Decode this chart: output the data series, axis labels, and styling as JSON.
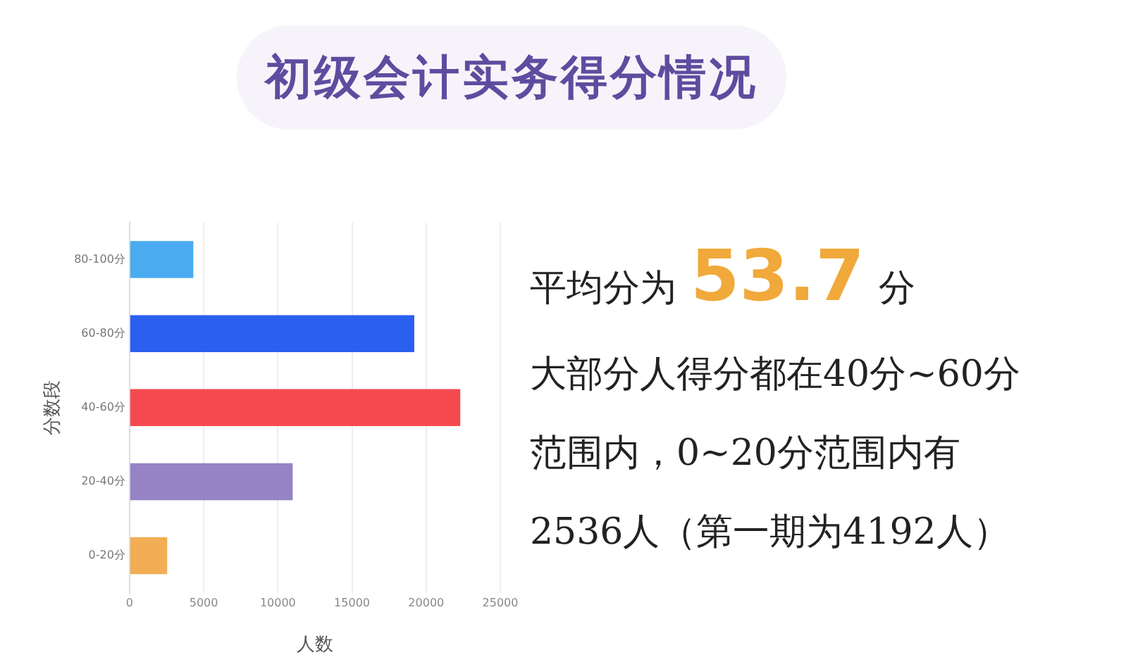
{
  "chart_data": {
    "type": "bar",
    "orientation": "horizontal",
    "title": "初级会计实务得分情况",
    "xlabel": "人数",
    "ylabel": "分数段",
    "categories": [
      "80-100分",
      "60-80分",
      "40-60分",
      "20-40分",
      "0-20分"
    ],
    "values": [
      4300,
      19200,
      22300,
      11000,
      2536
    ],
    "colors": [
      "#4aabf0",
      "#2a5ff0",
      "#f44a4f",
      "#9583c6",
      "#f2ad55"
    ],
    "xlim": [
      0,
      25000
    ],
    "xticks": [
      0,
      5000,
      10000,
      15000,
      20000,
      25000
    ],
    "grid": "x",
    "legend": false,
    "annotations": [
      "平均分为53.7分",
      "大部分人得分都在40分~60分范围内，0~20分范围内有2536人（第一期为4192人）"
    ]
  }
}
